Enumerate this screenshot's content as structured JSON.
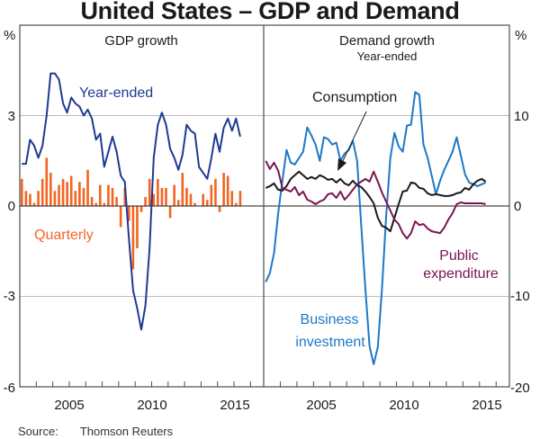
{
  "title": "United States – GDP and Demand",
  "source": {
    "label": "Source:",
    "value": "Thomson Reuters"
  },
  "colors": {
    "gdp_year_ended": "#1f3a93",
    "gdp_quarterly": "#f26522",
    "business_investment": "#1e78c8",
    "consumption": "#1a1a1a",
    "public_expenditure": "#7b1450",
    "gridline": "#bdbdbd",
    "zero_line": "#1a1a1a",
    "frame": "#4d4d4d"
  },
  "chart_data": [
    {
      "type": "bar+line",
      "title": "GDP growth",
      "ylabel": "%",
      "yaxis_side": "left",
      "ylim": [
        -6,
        6
      ],
      "yticks": [
        -6,
        -3,
        0,
        3
      ],
      "xlim": [
        2002.0,
        2016.8
      ],
      "xticks": [
        2005,
        2010,
        2015
      ],
      "x_start": 2002.125,
      "x_step": 0.25,
      "grid": true,
      "series": [
        {
          "name": "Year-ended",
          "kind": "line",
          "color_key": "gdp_year_ended",
          "label_pos": "upper-middle",
          "values": [
            1.4,
            1.4,
            2.2,
            2.0,
            1.6,
            2.0,
            3.0,
            4.4,
            4.4,
            4.2,
            3.4,
            3.1,
            3.6,
            3.4,
            3.3,
            3.0,
            3.2,
            2.9,
            2.2,
            2.4,
            1.3,
            1.8,
            2.3,
            1.8,
            1.0,
            0.8,
            -1.1,
            -2.8,
            -3.4,
            -4.1,
            -3.3,
            -1.4,
            1.6,
            2.7,
            3.1,
            2.7,
            1.9,
            1.6,
            1.2,
            1.7,
            2.7,
            2.5,
            2.4,
            1.3,
            1.1,
            0.9,
            1.6,
            2.4,
            1.8,
            2.6,
            2.9,
            2.5,
            2.9,
            2.3
          ]
        },
        {
          "name": "Quarterly",
          "kind": "bar",
          "color_key": "gdp_quarterly",
          "label_pos": "lower-left",
          "values": [
            0.9,
            0.5,
            0.4,
            0.1,
            0.5,
            0.9,
            1.6,
            1.1,
            0.5,
            0.7,
            0.9,
            0.8,
            1.0,
            0.5,
            0.8,
            0.6,
            1.2,
            0.3,
            0.1,
            0.7,
            0.1,
            0.7,
            0.6,
            0.3,
            -0.7,
            0.6,
            -0.5,
            -2.1,
            -1.4,
            -0.2,
            0.3,
            0.9,
            0.4,
            0.9,
            0.6,
            0.6,
            -0.4,
            0.7,
            0.2,
            1.1,
            0.6,
            0.4,
            0.1,
            0.0,
            0.4,
            0.2,
            0.7,
            0.9,
            -0.2,
            1.1,
            1.0,
            0.5,
            0.1,
            0.5
          ]
        }
      ]
    },
    {
      "type": "line",
      "title": "Demand growth",
      "subtitle": "Year-ended",
      "ylabel": "%",
      "yaxis_side": "right",
      "ylim": [
        -20,
        20
      ],
      "yticks": [
        -20,
        -10,
        0,
        10
      ],
      "xlim": [
        2002.0,
        2016.8
      ],
      "xticks": [
        2005,
        2010,
        2015
      ],
      "x_start": 2002.125,
      "x_step": 0.25,
      "grid": true,
      "annotation": {
        "text": "Consumption",
        "arrow_to_series": "Consumption",
        "arrow_to_x": 2006.0
      },
      "series": [
        {
          "name": "Business investment",
          "label_lines": [
            "Business",
            "investment"
          ],
          "color_key": "business_investment",
          "label_pos": "lower-left",
          "values": [
            -8.4,
            -7.4,
            -5.2,
            -0.8,
            2.8,
            6.2,
            4.8,
            4.6,
            5.3,
            6.0,
            8.7,
            7.8,
            6.8,
            5.0,
            7.6,
            7.4,
            6.8,
            7.0,
            5.0,
            5.8,
            6.2,
            7.2,
            5.0,
            -2.2,
            -9.2,
            -15.5,
            -17.5,
            -15.6,
            -9.2,
            -1.2,
            5.3,
            8.1,
            6.6,
            6.0,
            8.9,
            9.0,
            12.6,
            12.3,
            6.8,
            5.3,
            3.3,
            1.3,
            2.8,
            4.0,
            5.0,
            6.0,
            7.6,
            5.6,
            3.5,
            2.6,
            2.4,
            2.2,
            2.4,
            2.6
          ]
        },
        {
          "name": "Consumption",
          "label_lines": [
            "Consumption"
          ],
          "color_key": "consumption",
          "label_pos": "annotation",
          "values": [
            2.0,
            2.2,
            2.5,
            1.8,
            1.7,
            2.2,
            3.0,
            3.4,
            3.8,
            3.4,
            3.0,
            3.2,
            3.0,
            3.4,
            3.2,
            2.9,
            3.0,
            2.6,
            3.0,
            2.5,
            2.3,
            2.8,
            2.3,
            2.1,
            1.6,
            1.0,
            0.3,
            -1.3,
            -2.2,
            -2.4,
            -2.8,
            -1.3,
            0.2,
            1.6,
            1.7,
            2.6,
            2.5,
            2.0,
            1.9,
            1.4,
            1.2,
            1.3,
            1.2,
            1.1,
            1.1,
            1.2,
            1.4,
            1.5,
            2.0,
            1.8,
            2.4,
            2.8,
            3.0,
            2.7
          ]
        },
        {
          "name": "Public expenditure",
          "label_lines": [
            "Public",
            "expenditure"
          ],
          "color_key": "public_expenditure",
          "label_pos": "lower-right",
          "values": [
            5.0,
            4.1,
            4.8,
            3.9,
            2.0,
            1.8,
            1.6,
            2.1,
            1.2,
            1.6,
            0.7,
            0.5,
            0.2,
            0.5,
            0.7,
            1.3,
            1.4,
            0.9,
            1.6,
            0.7,
            1.2,
            1.8,
            2.4,
            2.7,
            3.0,
            2.7,
            3.8,
            2.7,
            1.5,
            0.5,
            -0.5,
            -1.5,
            -2.0,
            -3.0,
            -3.6,
            -3.0,
            -1.7,
            -2.1,
            -2.0,
            -2.5,
            -2.8,
            -2.9,
            -3.0,
            -2.4,
            -1.5,
            -0.8,
            0.2,
            0.4,
            0.3,
            0.3,
            0.3,
            0.3,
            0.3,
            0.2
          ]
        }
      ]
    }
  ]
}
